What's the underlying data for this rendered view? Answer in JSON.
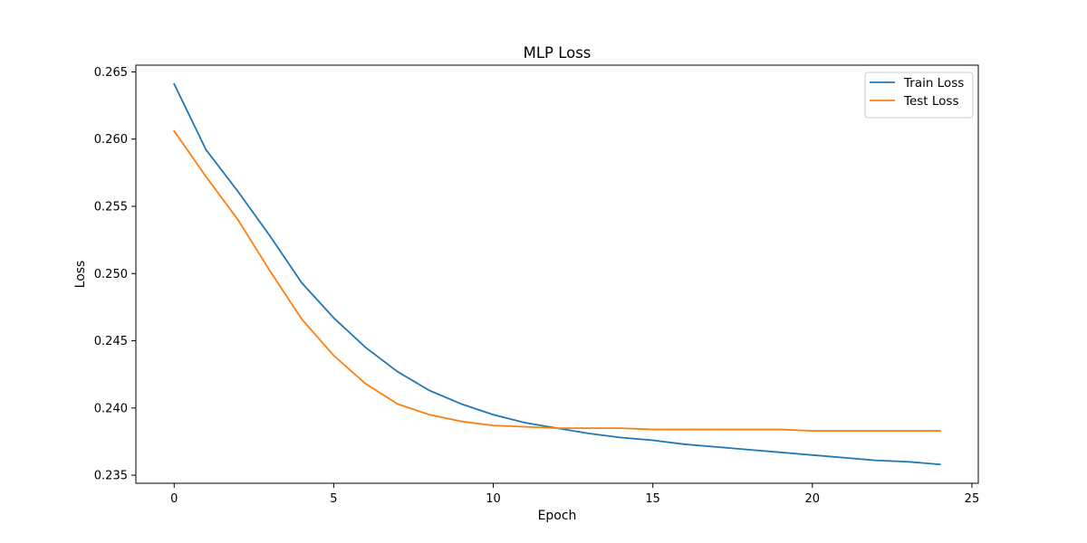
{
  "chart_data": {
    "type": "line",
    "title": "MLP Loss",
    "xlabel": "Epoch",
    "ylabel": "Loss",
    "xlim": [
      -1.2,
      25.2
    ],
    "ylim": [
      0.2344,
      0.2655
    ],
    "xticks": [
      0,
      5,
      10,
      15,
      20,
      25
    ],
    "xtick_labels": [
      "0",
      "5",
      "10",
      "15",
      "20",
      "25"
    ],
    "yticks": [
      0.235,
      0.24,
      0.245,
      0.25,
      0.255,
      0.26,
      0.265
    ],
    "ytick_labels": [
      "0.235",
      "0.240",
      "0.245",
      "0.250",
      "0.255",
      "0.260",
      "0.265"
    ],
    "grid": false,
    "legend_position": "top-right",
    "x": [
      0,
      1,
      2,
      3,
      4,
      5,
      6,
      7,
      8,
      9,
      10,
      11,
      12,
      13,
      14,
      15,
      16,
      17,
      18,
      19,
      20,
      21,
      22,
      23,
      24
    ],
    "series": [
      {
        "name": "Train Loss",
        "color": "#1f77b4",
        "values": [
          0.2641,
          0.2592,
          0.2561,
          0.2528,
          0.2493,
          0.2467,
          0.2445,
          0.2427,
          0.2413,
          0.2403,
          0.2395,
          0.2389,
          0.2385,
          0.2381,
          0.2378,
          0.2376,
          0.2373,
          0.2371,
          0.2369,
          0.2367,
          0.2365,
          0.2363,
          0.2361,
          0.236,
          0.2358
        ]
      },
      {
        "name": "Test Loss",
        "color": "#ff7f0e",
        "values": [
          0.2606,
          0.2572,
          0.254,
          0.2502,
          0.2466,
          0.2439,
          0.2418,
          0.2403,
          0.2395,
          0.239,
          0.2387,
          0.2386,
          0.2385,
          0.2385,
          0.2385,
          0.2384,
          0.2384,
          0.2384,
          0.2384,
          0.2384,
          0.2383,
          0.2383,
          0.2383,
          0.2383,
          0.2383
        ]
      }
    ]
  }
}
